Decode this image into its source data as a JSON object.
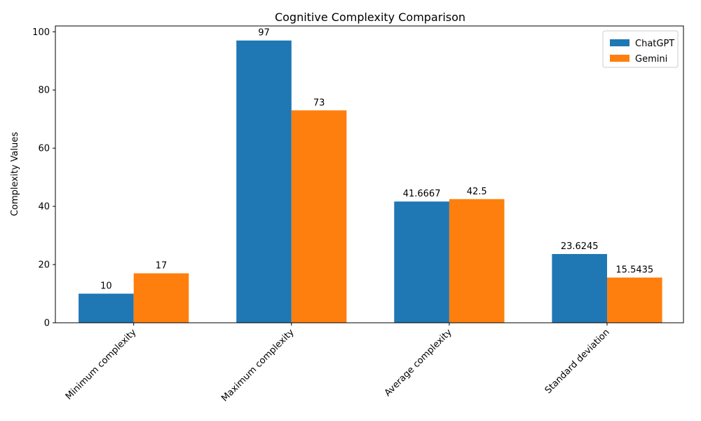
{
  "chart_data": {
    "type": "bar",
    "title": "Cognitive Complexity Comparison",
    "xlabel": "",
    "ylabel": "Complexity Values",
    "categories": [
      "Minimum complexity",
      "Maximum complexity",
      "Average complexity",
      "Standard deviation"
    ],
    "series": [
      {
        "name": "ChatGPT",
        "color": "#1f77b4",
        "values": [
          10,
          97,
          41.6667,
          23.6245
        ],
        "labels": [
          "10",
          "97",
          "41.6667",
          "23.6245"
        ]
      },
      {
        "name": "Gemini",
        "color": "#ff7f0e",
        "values": [
          17,
          73,
          42.5,
          15.5435
        ],
        "labels": [
          "17",
          "73",
          "42.5",
          "15.5435"
        ]
      }
    ],
    "ylim": [
      0,
      102
    ],
    "yticks": [
      0,
      20,
      40,
      60,
      80,
      100
    ],
    "grid": false,
    "legend_position": "top-right"
  }
}
